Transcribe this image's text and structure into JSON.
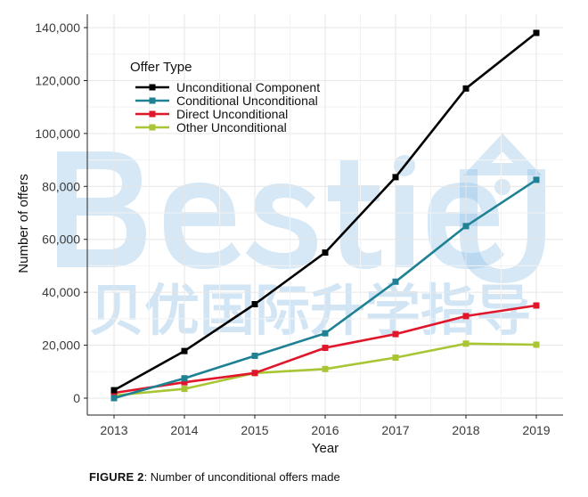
{
  "watermark": {
    "latin": "BestieU",
    "chinese": "贝优国际升学指导",
    "color": "#7fb7e3"
  },
  "caption": {
    "label": "FIGURE 2",
    "separator": ": ",
    "text": "Number of unconditional offers made"
  },
  "chart_data": {
    "type": "line",
    "xlabel": "Year",
    "ylabel": "Number of offers",
    "x": [
      2013,
      2014,
      2015,
      2016,
      2017,
      2018,
      2019
    ],
    "x_ticks": [
      "2013",
      "2014",
      "2015",
      "2016",
      "2017",
      "2018",
      "2019"
    ],
    "ylim": [
      0,
      140000
    ],
    "y_ticks": [
      0,
      20000,
      40000,
      60000,
      80000,
      100000,
      120000,
      140000
    ],
    "y_tick_labels": [
      "0",
      "20,000",
      "40,000",
      "60,000",
      "80,000",
      "100,000",
      "120,000",
      "140,000"
    ],
    "grid": true,
    "legend": {
      "title": "Offer Type",
      "placement": "top-left"
    },
    "series": [
      {
        "name": "Unconditional Component",
        "color": "#000000",
        "values": [
          3000,
          17800,
          35500,
          55000,
          83500,
          117000,
          138000
        ]
      },
      {
        "name": "Conditional Unconditional",
        "color": "#1f8294",
        "values": [
          0,
          7500,
          16000,
          24500,
          44000,
          65000,
          82500
        ]
      },
      {
        "name": "Direct Unconditional",
        "color": "#e0162b",
        "values": [
          2000,
          6000,
          9500,
          19000,
          24200,
          31000,
          35000
        ]
      },
      {
        "name": "Other Unconditional",
        "color": "#a8c534",
        "values": [
          1000,
          3500,
          9500,
          11000,
          15300,
          20600,
          20200
        ]
      }
    ]
  }
}
